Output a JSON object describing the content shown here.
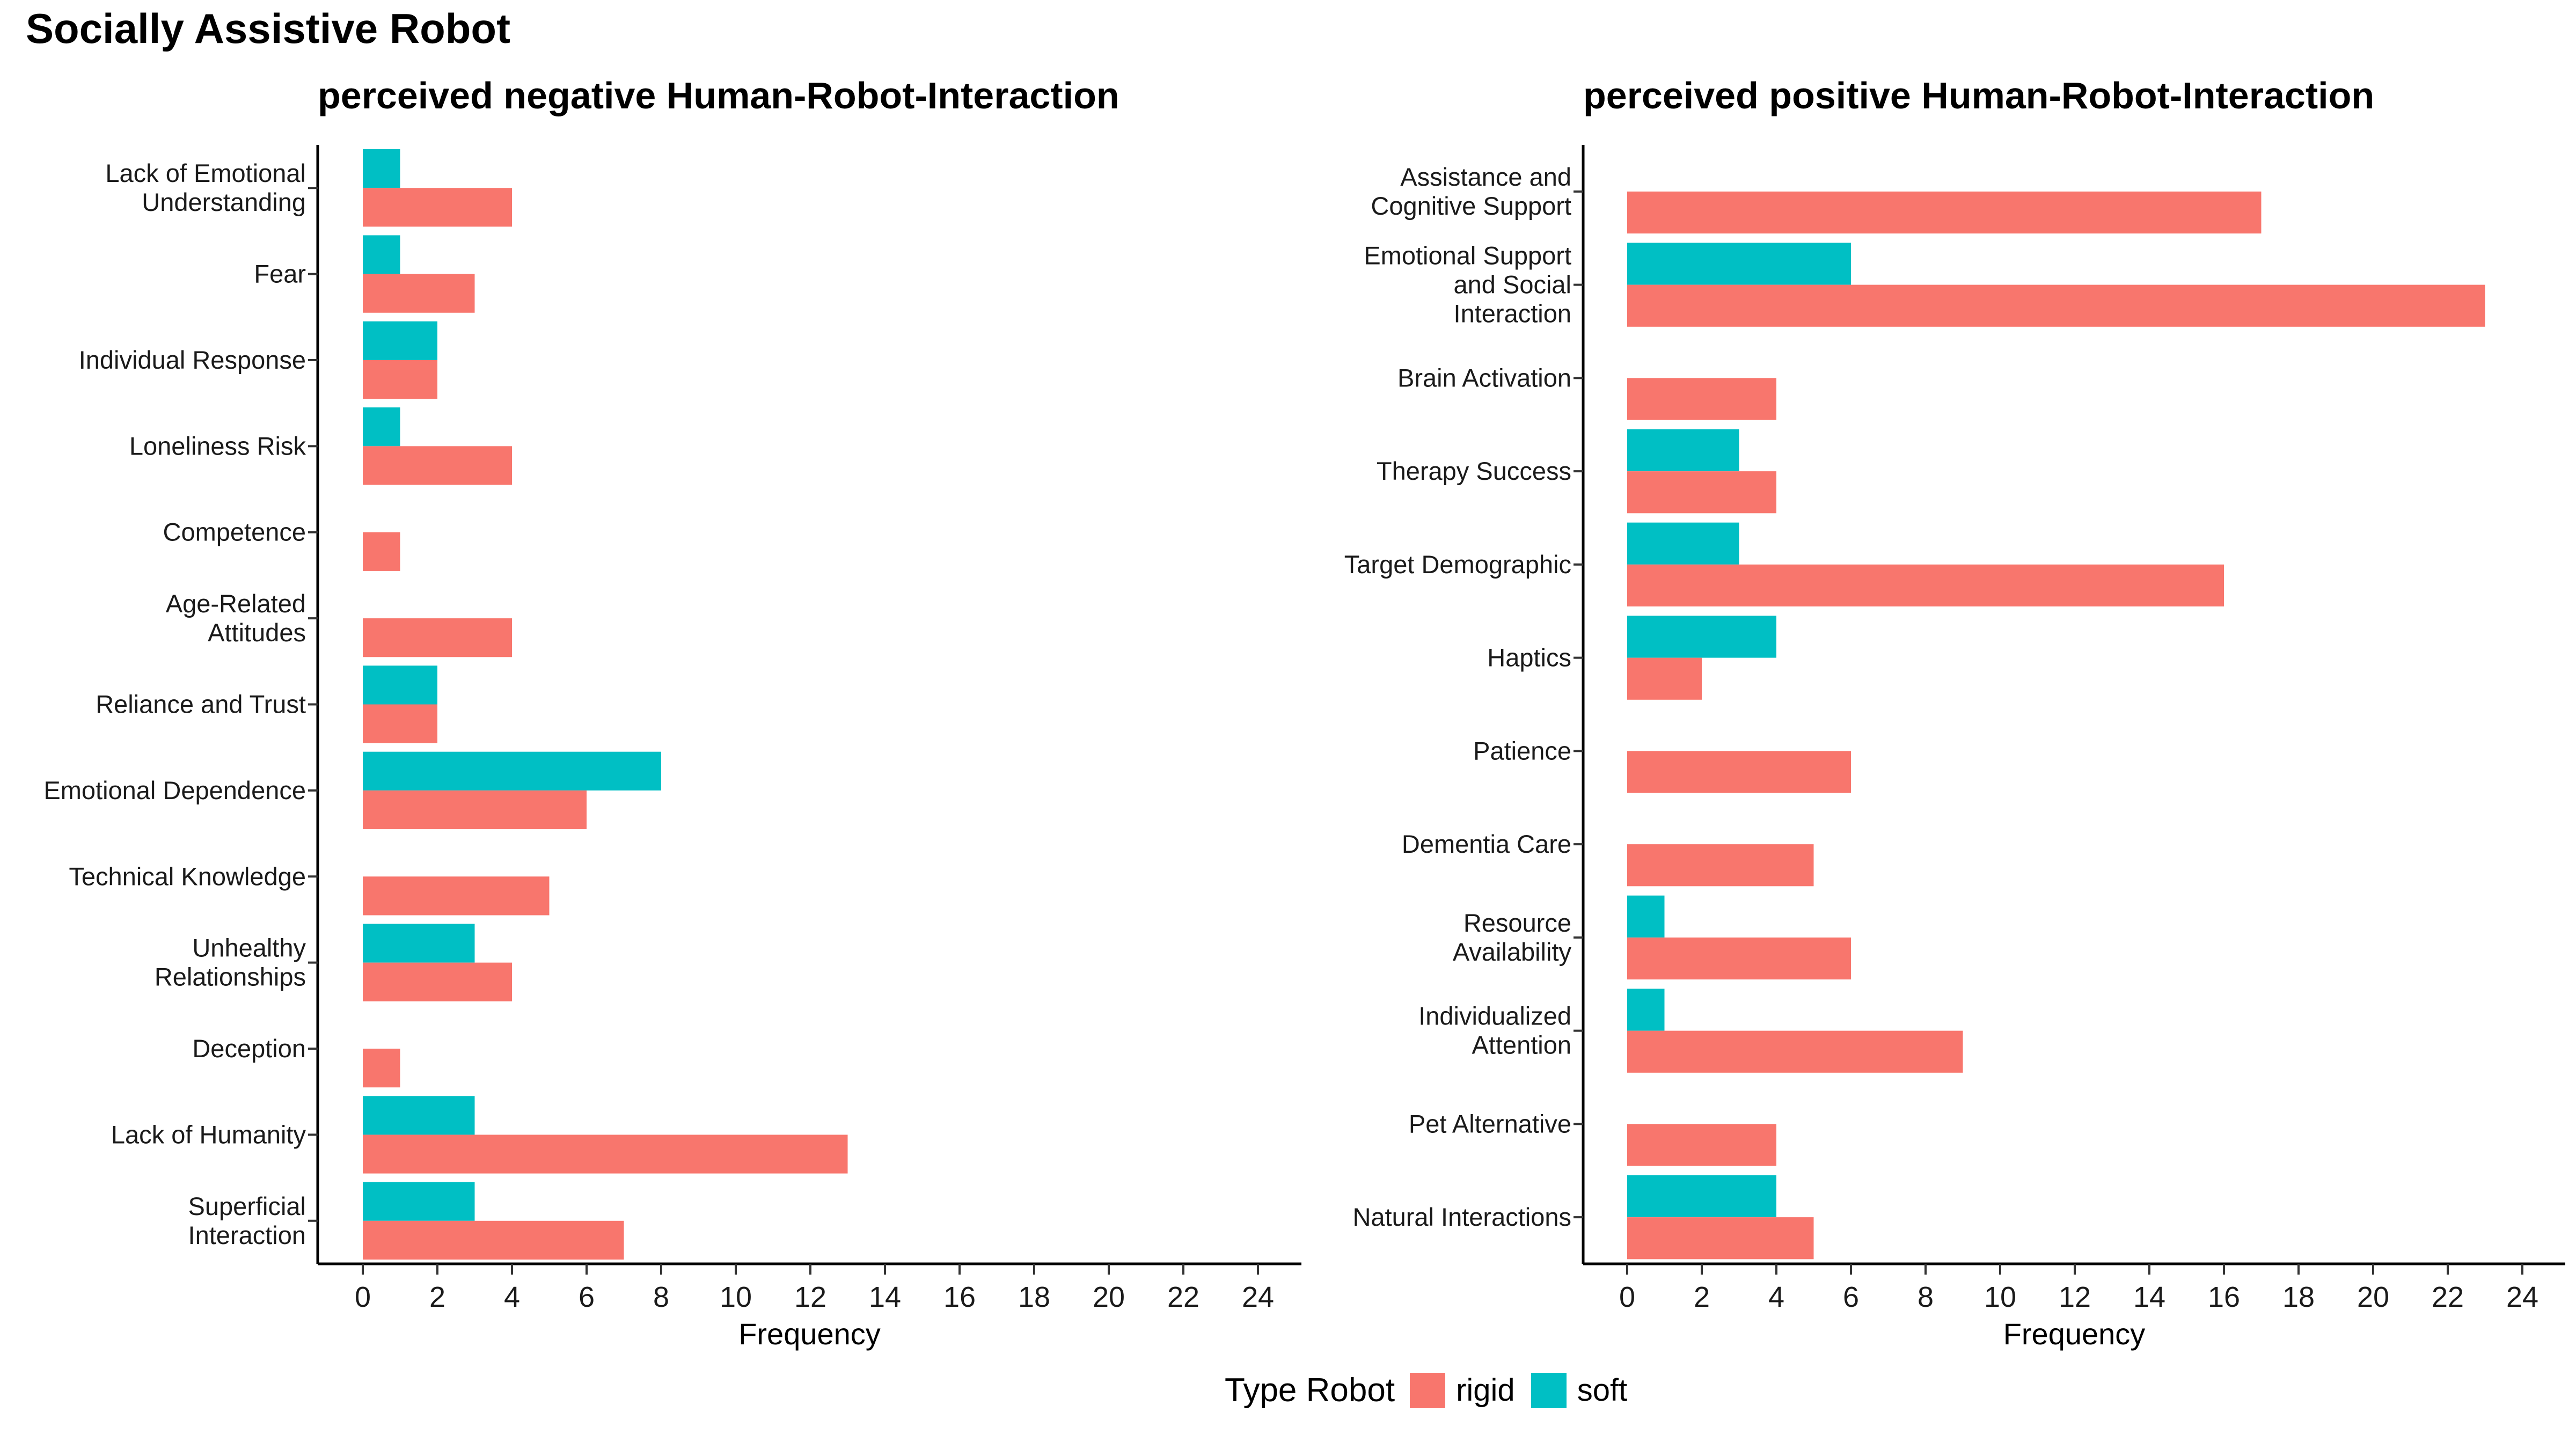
{
  "suptitle": "Socially Assistive Robot",
  "legend": {
    "title": "Type Robot",
    "items": [
      {
        "label": "rigid",
        "color": "#F8766D"
      },
      {
        "label": "soft",
        "color": "#00BFC4"
      }
    ]
  },
  "chart_data": [
    {
      "type": "bar",
      "orientation": "horizontal",
      "title": "perceived negative Human-Robot-Interaction",
      "xlabel": "Frequency",
      "xlim": [
        0,
        24
      ],
      "xticks": [
        0,
        2,
        4,
        6,
        8,
        10,
        12,
        14,
        16,
        18,
        20,
        22,
        24
      ],
      "categories": [
        "Lack of Emotional\nUnderstanding",
        "Fear",
        "Individual Response",
        "Loneliness Risk",
        "Competence",
        "Age-Related\nAttitudes",
        "Reliance and Trust",
        "Emotional Dependence",
        "Technical Knowledge",
        "Unhealthy\nRelationships",
        "Deception",
        "Lack of Humanity",
        "Superficial\nInteraction"
      ],
      "series": [
        {
          "name": "rigid",
          "color": "#F8766D",
          "values": [
            4,
            3,
            2,
            4,
            1,
            4,
            2,
            6,
            5,
            4,
            1,
            13,
            7
          ]
        },
        {
          "name": "soft",
          "color": "#00BFC4",
          "values": [
            1,
            1,
            2,
            1,
            0,
            0,
            2,
            8,
            0,
            3,
            0,
            3,
            3
          ]
        }
      ]
    },
    {
      "type": "bar",
      "orientation": "horizontal",
      "title": "perceived positive Human-Robot-Interaction",
      "xlabel": "Frequency",
      "xlim": [
        0,
        24
      ],
      "xticks": [
        0,
        2,
        4,
        6,
        8,
        10,
        12,
        14,
        16,
        18,
        20,
        22,
        24
      ],
      "categories": [
        "Assistance and\nCognitive Support",
        "Emotional Support\nand Social\nInteraction",
        "Brain Activation",
        "Therapy Success",
        "Target Demographic",
        "Haptics",
        "Patience",
        "Dementia Care",
        "Resource\nAvailability",
        "Individualized\nAttention",
        "Pet Alternative",
        "Natural Interactions"
      ],
      "series": [
        {
          "name": "rigid",
          "color": "#F8766D",
          "values": [
            17,
            23,
            4,
            4,
            16,
            2,
            6,
            5,
            6,
            9,
            4,
            5
          ]
        },
        {
          "name": "soft",
          "color": "#00BFC4",
          "values": [
            0,
            6,
            0,
            3,
            3,
            4,
            0,
            0,
            1,
            1,
            0,
            4
          ]
        }
      ]
    }
  ]
}
